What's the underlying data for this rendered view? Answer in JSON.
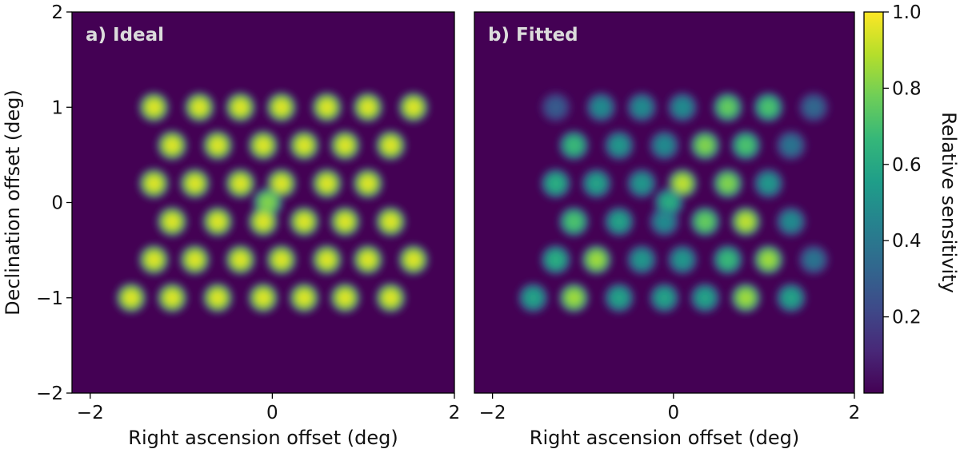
{
  "colors": {
    "background": "#440154",
    "colormap": [
      "#440154",
      "#482878",
      "#3e4a89",
      "#31688e",
      "#26828e",
      "#1f9e89",
      "#35b779",
      "#6ece58",
      "#b5de2b",
      "#fde725"
    ]
  },
  "chart_data": [
    {
      "type": "heatmap",
      "panel_label": "a) Ideal",
      "xlabel": "Right ascension offset (deg)",
      "ylabel": "Declination offset (deg)",
      "xlim": [
        -2.2,
        2.0
      ],
      "ylim": [
        -2.0,
        2.0
      ],
      "x_ticks": [
        -2,
        0,
        2
      ],
      "x_tick_labels": [
        "−2",
        "0",
        "2"
      ],
      "y_ticks": [
        -2,
        -1,
        0,
        1,
        2
      ],
      "y_tick_labels": [
        "−2",
        "−1",
        "0",
        "1",
        "2"
      ],
      "beam_width_deg": 0.2,
      "beams": [
        {
          "x": -1.3,
          "y": 1.0,
          "v": 1.0
        },
        {
          "x": -0.8,
          "y": 1.0,
          "v": 1.0
        },
        {
          "x": -0.35,
          "y": 1.0,
          "v": 1.0
        },
        {
          "x": 0.1,
          "y": 1.0,
          "v": 1.0
        },
        {
          "x": 0.6,
          "y": 1.0,
          "v": 1.0
        },
        {
          "x": 1.05,
          "y": 1.0,
          "v": 1.0
        },
        {
          "x": 1.55,
          "y": 1.0,
          "v": 1.0
        },
        {
          "x": -1.1,
          "y": 0.6,
          "v": 1.0
        },
        {
          "x": -0.6,
          "y": 0.6,
          "v": 1.0
        },
        {
          "x": -0.1,
          "y": 0.6,
          "v": 1.0
        },
        {
          "x": 0.35,
          "y": 0.6,
          "v": 1.0
        },
        {
          "x": 0.8,
          "y": 0.6,
          "v": 1.0
        },
        {
          "x": 1.3,
          "y": 0.6,
          "v": 1.0
        },
        {
          "x": -1.3,
          "y": 0.2,
          "v": 1.0
        },
        {
          "x": -0.85,
          "y": 0.2,
          "v": 1.0
        },
        {
          "x": -0.35,
          "y": 0.2,
          "v": 1.0
        },
        {
          "x": 0.1,
          "y": 0.2,
          "v": 1.0
        },
        {
          "x": 0.6,
          "y": 0.2,
          "v": 1.0
        },
        {
          "x": 1.05,
          "y": 0.2,
          "v": 1.0
        },
        {
          "x": -0.05,
          "y": 0.0,
          "v": 0.85
        },
        {
          "x": -1.1,
          "y": -0.2,
          "v": 1.0
        },
        {
          "x": -0.6,
          "y": -0.2,
          "v": 1.0
        },
        {
          "x": -0.1,
          "y": -0.2,
          "v": 1.0
        },
        {
          "x": 0.35,
          "y": -0.2,
          "v": 1.0
        },
        {
          "x": 0.8,
          "y": -0.2,
          "v": 1.0
        },
        {
          "x": 1.3,
          "y": -0.2,
          "v": 1.0
        },
        {
          "x": -1.3,
          "y": -0.6,
          "v": 1.0
        },
        {
          "x": -0.85,
          "y": -0.6,
          "v": 1.0
        },
        {
          "x": -0.35,
          "y": -0.6,
          "v": 1.0
        },
        {
          "x": 0.1,
          "y": -0.6,
          "v": 1.0
        },
        {
          "x": 0.6,
          "y": -0.6,
          "v": 1.0
        },
        {
          "x": 1.05,
          "y": -0.6,
          "v": 1.0
        },
        {
          "x": 1.55,
          "y": -0.6,
          "v": 1.0
        },
        {
          "x": -1.55,
          "y": -1.0,
          "v": 1.0
        },
        {
          "x": -1.1,
          "y": -1.0,
          "v": 1.0
        },
        {
          "x": -0.6,
          "y": -1.0,
          "v": 1.0
        },
        {
          "x": -0.1,
          "y": -1.0,
          "v": 1.0
        },
        {
          "x": 0.35,
          "y": -1.0,
          "v": 1.0
        },
        {
          "x": 0.8,
          "y": -1.0,
          "v": 1.0
        },
        {
          "x": 1.3,
          "y": -1.0,
          "v": 1.0
        }
      ]
    },
    {
      "type": "heatmap",
      "panel_label": "b) Fitted",
      "xlabel": "Right ascension offset (deg)",
      "ylabel": "",
      "xlim": [
        -2.2,
        2.0
      ],
      "ylim": [
        -2.0,
        2.0
      ],
      "x_ticks": [
        -2,
        0,
        2
      ],
      "x_tick_labels": [
        "−2",
        "0",
        "2"
      ],
      "y_ticks": [],
      "y_tick_labels": [],
      "beam_width_deg": 0.2,
      "beams": [
        {
          "x": -1.3,
          "y": 1.0,
          "v": 0.3
        },
        {
          "x": -0.8,
          "y": 1.0,
          "v": 0.5
        },
        {
          "x": -0.35,
          "y": 1.0,
          "v": 0.5
        },
        {
          "x": 0.1,
          "y": 1.0,
          "v": 0.5
        },
        {
          "x": 0.6,
          "y": 1.0,
          "v": 0.8
        },
        {
          "x": 1.05,
          "y": 1.0,
          "v": 0.75
        },
        {
          "x": 1.55,
          "y": 1.0,
          "v": 0.35
        },
        {
          "x": -1.1,
          "y": 0.6,
          "v": 0.7
        },
        {
          "x": -0.6,
          "y": 0.6,
          "v": 0.55
        },
        {
          "x": -0.1,
          "y": 0.6,
          "v": 0.5
        },
        {
          "x": 0.35,
          "y": 0.6,
          "v": 0.85
        },
        {
          "x": 0.8,
          "y": 0.6,
          "v": 0.75
        },
        {
          "x": 1.3,
          "y": 0.6,
          "v": 0.4
        },
        {
          "x": -1.3,
          "y": 0.2,
          "v": 0.65
        },
        {
          "x": -0.85,
          "y": 0.2,
          "v": 0.6
        },
        {
          "x": -0.35,
          "y": 0.2,
          "v": 0.55
        },
        {
          "x": 0.1,
          "y": 0.2,
          "v": 0.95
        },
        {
          "x": 0.6,
          "y": 0.2,
          "v": 0.85
        },
        {
          "x": 1.05,
          "y": 0.2,
          "v": 0.55
        },
        {
          "x": -0.05,
          "y": 0.0,
          "v": 0.65
        },
        {
          "x": -1.1,
          "y": -0.2,
          "v": 0.75
        },
        {
          "x": -0.6,
          "y": -0.2,
          "v": 0.6
        },
        {
          "x": -0.1,
          "y": -0.2,
          "v": 0.5
        },
        {
          "x": 0.35,
          "y": -0.2,
          "v": 0.8
        },
        {
          "x": 0.8,
          "y": -0.2,
          "v": 0.95
        },
        {
          "x": 1.3,
          "y": -0.2,
          "v": 0.5
        },
        {
          "x": -1.3,
          "y": -0.6,
          "v": 0.65
        },
        {
          "x": -0.85,
          "y": -0.6,
          "v": 0.9
        },
        {
          "x": -0.35,
          "y": -0.6,
          "v": 0.55
        },
        {
          "x": 0.1,
          "y": -0.6,
          "v": 0.55
        },
        {
          "x": 0.6,
          "y": -0.6,
          "v": 0.7
        },
        {
          "x": 1.05,
          "y": -0.6,
          "v": 0.9
        },
        {
          "x": 1.55,
          "y": -0.6,
          "v": 0.4
        },
        {
          "x": -1.55,
          "y": -1.0,
          "v": 0.6
        },
        {
          "x": -1.1,
          "y": -1.0,
          "v": 0.9
        },
        {
          "x": -0.6,
          "y": -1.0,
          "v": 0.6
        },
        {
          "x": -0.1,
          "y": -1.0,
          "v": 0.6
        },
        {
          "x": 0.35,
          "y": -1.0,
          "v": 0.6
        },
        {
          "x": 0.8,
          "y": -1.0,
          "v": 0.9
        },
        {
          "x": 1.3,
          "y": -1.0,
          "v": 0.6
        }
      ]
    }
  ],
  "colorbar": {
    "label": "Relative sensitivity",
    "range": [
      0.0,
      1.0
    ],
    "ticks": [
      0.2,
      0.4,
      0.6,
      0.8,
      1.0
    ],
    "tick_labels": [
      "0.2",
      "0.4",
      "0.6",
      "0.8",
      "1.0"
    ]
  }
}
